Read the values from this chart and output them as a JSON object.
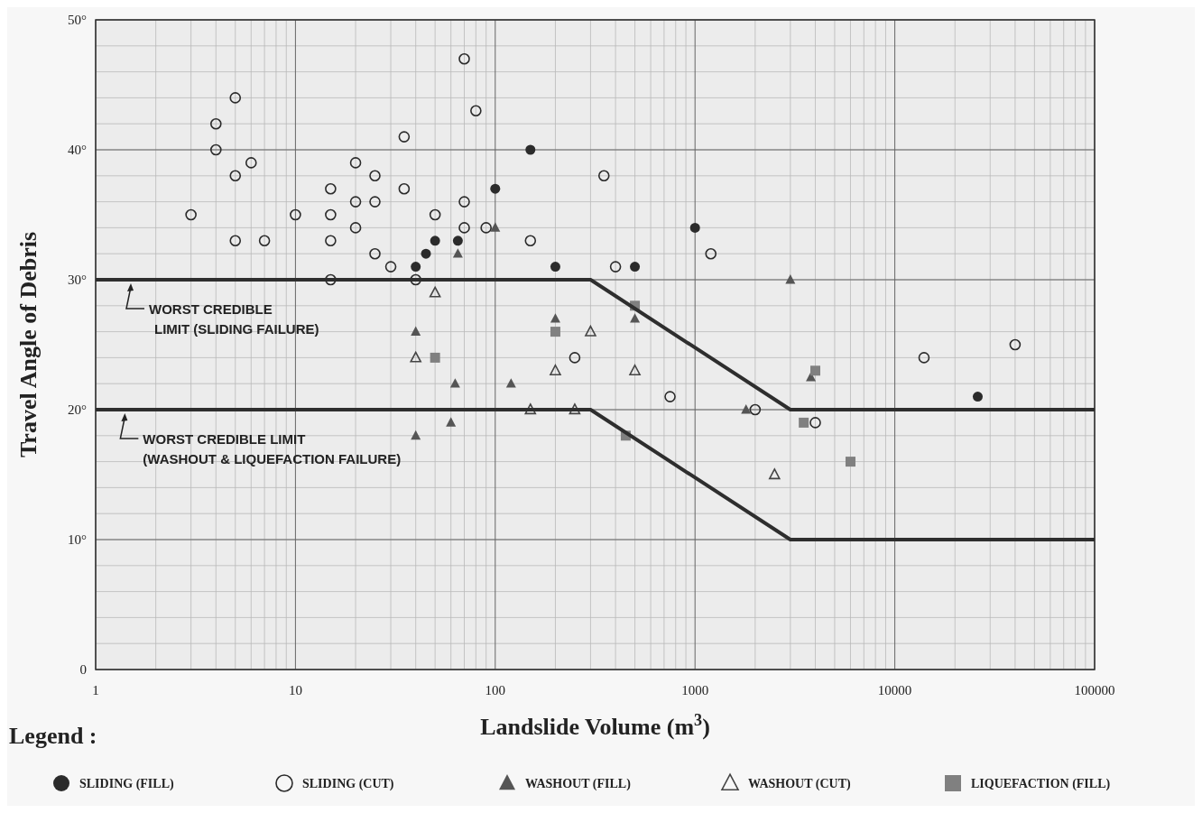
{
  "chart_data": {
    "type": "scatter",
    "xlabel": "Landslide Volume (m$^{3}$)",
    "ylabel": "Travel Angle of Debris",
    "legend_title": "Legend :",
    "log": "x",
    "grid": true,
    "legend": "bottom",
    "xlim": [
      1,
      100000
    ],
    "xticks": [
      1,
      10,
      100,
      1000,
      10000,
      100000
    ],
    "ylim": [
      0,
      50
    ],
    "yticks": [
      0,
      {
        "value": 10,
        "label": "10°"
      },
      {
        "value": 20,
        "label": "20°"
      },
      {
        "value": 30,
        "label": "30°"
      },
      {
        "value": 40,
        "label": "40°"
      },
      {
        "value": 50,
        "label": "50°"
      }
    ],
    "series": [
      {
        "name": "SLIDING (FILL)",
        "color": "#2b2b2b",
        "marker": "circle",
        "x": [
          40,
          45,
          50,
          65,
          100,
          150,
          200,
          500,
          1000,
          26000
        ],
        "values": [
          31,
          32,
          33,
          33,
          37,
          40,
          31,
          31,
          34,
          21
        ]
      },
      {
        "name": "SLIDING (CUT)",
        "color": "#2b2b2b",
        "marker": "circle-open",
        "x": [
          3,
          4,
          4,
          5,
          5,
          5,
          6,
          7,
          10,
          15,
          15,
          15,
          15,
          20,
          20,
          20,
          25,
          25,
          25,
          30,
          35,
          35,
          40,
          50,
          70,
          70,
          70,
          80,
          90,
          150,
          350,
          400,
          250,
          750,
          1200,
          2000,
          4000,
          14000,
          40000
        ],
        "values": [
          35,
          42,
          40,
          44,
          38,
          33,
          39,
          33,
          35,
          37,
          35,
          33,
          30,
          39,
          36,
          34,
          38,
          36,
          32,
          31,
          41,
          37,
          30,
          35,
          47,
          36,
          34,
          43,
          34,
          33,
          38,
          31,
          24,
          21,
          32,
          20,
          19,
          24,
          25
        ]
      },
      {
        "name": "WASHOUT (FILL)",
        "color": "#555555",
        "marker": "triangle",
        "x": [
          40,
          40,
          63,
          60,
          65,
          100,
          120,
          200,
          500,
          3000,
          1800,
          3800
        ],
        "values": [
          26,
          18,
          22,
          19,
          32,
          34,
          22,
          27,
          27,
          30,
          20,
          22.5
        ]
      },
      {
        "name": "WASHOUT (CUT)",
        "color": "#444444",
        "marker": "triangle-open",
        "x": [
          50,
          40,
          150,
          250,
          200,
          300,
          500,
          2500
        ],
        "values": [
          29,
          24,
          20,
          20,
          23,
          26,
          23,
          15
        ]
      },
      {
        "name": "LIQUEFACTION (FILL)",
        "color": "#808080",
        "marker": "square",
        "x": [
          50,
          200,
          500,
          450,
          3500,
          4000,
          6000
        ],
        "values": [
          24,
          26,
          28,
          18,
          19,
          23,
          16
        ]
      },
      {
        "type": "line",
        "color": "#2e2e2e",
        "x": [
          1,
          300,
          3000,
          100000
        ],
        "values": [
          30,
          30,
          20,
          20
        ]
      },
      {
        "type": "line",
        "color": "#2e2e2e",
        "x": [
          1,
          300,
          3000,
          100000
        ],
        "values": [
          20,
          20,
          10,
          10
        ]
      }
    ],
    "annotations": [
      {
        "text": "WORST CREDIBLE\nLIMIT (SLIDING FAILURE)",
        "x": 1.5,
        "y": 30
      },
      {
        "text": "WORST CREDIBLE LIMIT\n(WASHOUT & LIQUEFACTION FAILURE)",
        "x": 1.4,
        "y": 20
      }
    ]
  }
}
